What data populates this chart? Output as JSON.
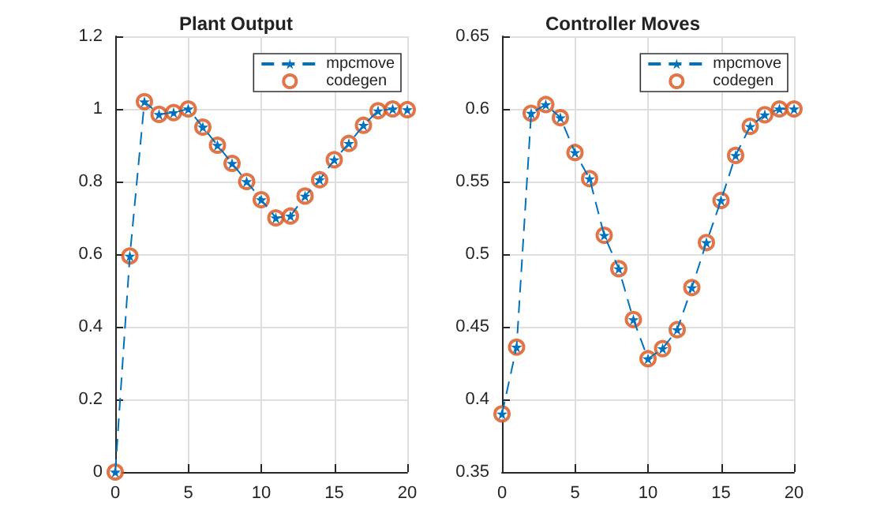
{
  "chart_data": [
    {
      "type": "line",
      "title": "Plant Output",
      "x": [
        0,
        1,
        2,
        3,
        4,
        5,
        6,
        7,
        8,
        9,
        10,
        11,
        12,
        13,
        14,
        15,
        16,
        17,
        18,
        19,
        20
      ],
      "series": [
        {
          "name": "mpcmove",
          "color": "#0072bd",
          "marker": "star",
          "line_style": "dashed",
          "values": [
            0,
            0.595,
            1.02,
            0.985,
            0.99,
            1.0,
            0.95,
            0.9,
            0.85,
            0.8,
            0.75,
            0.7,
            0.705,
            0.76,
            0.805,
            0.86,
            0.905,
            0.955,
            0.995,
            1.0,
            0.998
          ]
        },
        {
          "name": "codegen",
          "type": "scatter",
          "color": "#d95319",
          "marker": "circle",
          "values": [
            0,
            0.595,
            1.02,
            0.985,
            0.99,
            1.0,
            0.95,
            0.9,
            0.85,
            0.8,
            0.75,
            0.7,
            0.705,
            0.76,
            0.805,
            0.86,
            0.905,
            0.955,
            0.995,
            1.0,
            0.998
          ]
        }
      ],
      "xlim": [
        0,
        20
      ],
      "xticks": [
        0,
        5,
        10,
        15,
        20
      ],
      "ylim": [
        0,
        1.2
      ],
      "yticks": [
        0,
        0.2,
        0.4,
        0.6,
        0.8,
        1,
        1.2
      ],
      "grid": true,
      "legend": "top right"
    },
    {
      "type": "line",
      "title": "Controller Moves",
      "x": [
        0,
        1,
        2,
        3,
        4,
        5,
        6,
        7,
        8,
        9,
        10,
        11,
        12,
        13,
        14,
        15,
        16,
        17,
        18,
        19,
        20
      ],
      "series": [
        {
          "name": "mpcmove",
          "color": "#0072bd",
          "marker": "star",
          "line_style": "dashed",
          "values": [
            0.39,
            0.436,
            0.597,
            0.603,
            0.594,
            0.57,
            0.552,
            0.513,
            0.49,
            0.455,
            0.428,
            0.435,
            0.448,
            0.477,
            0.508,
            0.537,
            0.568,
            0.588,
            0.596,
            0.6,
            0.6
          ]
        },
        {
          "name": "codegen",
          "type": "scatter",
          "color": "#d95319",
          "marker": "circle",
          "values": [
            0.39,
            0.436,
            0.597,
            0.603,
            0.594,
            0.57,
            0.552,
            0.513,
            0.49,
            0.455,
            0.428,
            0.435,
            0.448,
            0.477,
            0.508,
            0.537,
            0.568,
            0.588,
            0.596,
            0.6,
            0.6
          ]
        }
      ],
      "xlim": [
        0,
        20
      ],
      "xticks": [
        0,
        5,
        10,
        15,
        20
      ],
      "ylim": [
        0.35,
        0.65
      ],
      "yticks": [
        0.35,
        0.4,
        0.45,
        0.5,
        0.55,
        0.6,
        0.65
      ],
      "grid": true,
      "legend": "top right"
    }
  ]
}
